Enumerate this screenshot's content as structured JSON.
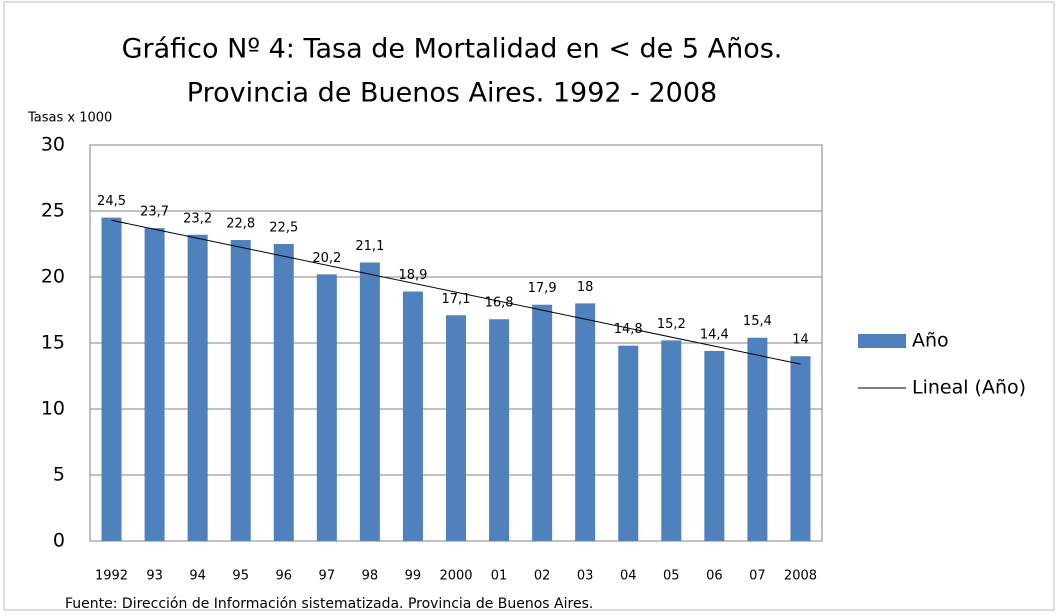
{
  "chart_data": {
    "type": "bar",
    "title": "Gráfico Nº 4: Tasa de Mortalidad en < de 5 Años.",
    "subtitle": "Provincia de Buenos Aires. 1992 - 2008",
    "y_label": "Tasas x 1000",
    "source": "Fuente: Dirección de Información sistematizada. Provincia de Buenos Aires.",
    "categories": [
      "1992",
      "93",
      "94",
      "95",
      "96",
      "97",
      "98",
      "99",
      "2000",
      "01",
      "02",
      "03",
      "04",
      "05",
      "06",
      "07",
      "2008"
    ],
    "series": [
      {
        "name": "Año",
        "color": "#4f81bd",
        "values": [
          24.5,
          23.7,
          23.2,
          22.8,
          22.5,
          20.2,
          21.1,
          18.9,
          17.1,
          16.8,
          17.9,
          18,
          14.8,
          15.2,
          14.4,
          15.4,
          14
        ],
        "value_labels": [
          "24,5",
          "23,7",
          "23,2",
          "22,8",
          "22,5",
          "20,2",
          "21,1",
          "18,9",
          "17,1",
          "16,8",
          "17,9",
          "18",
          "14,8",
          "15,2",
          "14,4",
          "15,4",
          "14"
        ]
      }
    ],
    "trend": {
      "name": "Lineal (Año)",
      "color": "#000000",
      "start": 24.3,
      "end": 13.4
    },
    "ylim": [
      0,
      30
    ],
    "yticks": [
      0,
      5,
      10,
      15,
      20,
      25,
      30
    ],
    "grid": true,
    "legend": "right"
  }
}
